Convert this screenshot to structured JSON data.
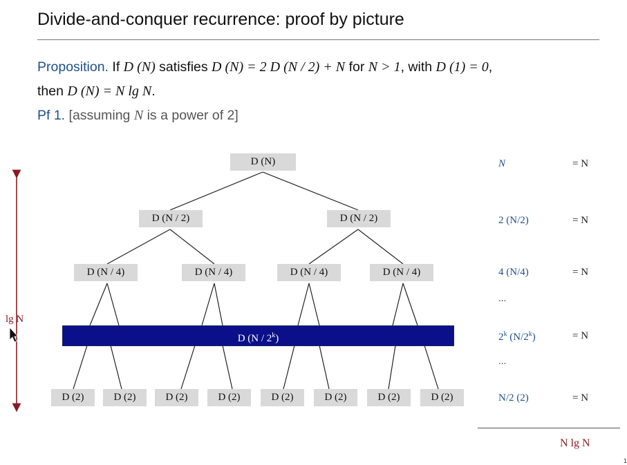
{
  "title": "Divide-and-conquer recurrence:  proof by picture",
  "proposition": {
    "label": "Proposition.",
    "if_text": " If ",
    "d_n": "D (N)",
    "satisfies": " satisfies ",
    "eq_lhs": "D (N) = 2 D (N / 2) + N",
    "for_text": "  for ",
    "cond": "N > 1",
    "with_text": ", with ",
    "base": "D (1) = 0",
    "comma": ",",
    "then_text": "then ",
    "result": "D (N) = N lg N",
    "period": "."
  },
  "proof": {
    "label": "Pf 1.",
    "note_pre": "  [assuming ",
    "note_var": "N",
    "note_post": " is a power of 2]"
  },
  "tree": {
    "root": "D (N)",
    "level1": [
      "D (N / 2)",
      "D (N / 2)"
    ],
    "level2": [
      "D (N / 4)",
      "D (N / 4)",
      "D (N / 4)",
      "D (N / 4)"
    ],
    "band": "D (N / 2",
    "band_sup": "k",
    "band_close": ")",
    "leaves": [
      "D (2)",
      "D (2)",
      "D (2)",
      "D (2)",
      "D (2)",
      "D (2)",
      "D (2)",
      "D (2)"
    ]
  },
  "height_label": "lg N",
  "costs": [
    {
      "term": "N",
      "eq": "= N"
    },
    {
      "term": "2 (N/2)",
      "eq": "= N"
    },
    {
      "term": "4 (N/4)",
      "eq": "= N"
    },
    {
      "term": "...",
      "eq": ""
    },
    {
      "term_a": "2",
      "term_sup": "k",
      "term_b": " (N/2",
      "term_sup2": "k",
      "term_c": ")",
      "eq": "= N"
    },
    {
      "term": "...",
      "eq": ""
    },
    {
      "term": "N/2 (2)",
      "eq": "= N"
    }
  ],
  "total": "N lg N",
  "page_number": "1",
  "colors": {
    "band": "#0b108a",
    "accent_blue": "#1f4f8a",
    "accent_red": "#8a1a22",
    "node_fill": "#d9d9d9"
  }
}
